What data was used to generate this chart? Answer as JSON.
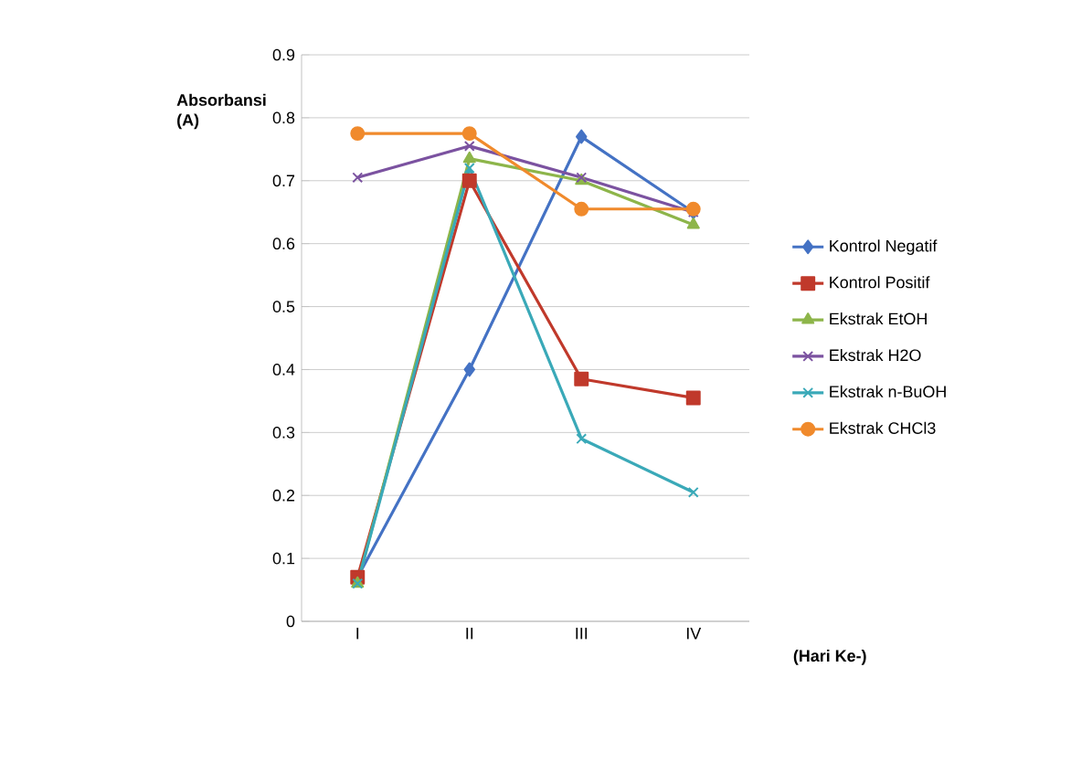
{
  "chart_data": {
    "type": "line",
    "ylabel": "Absorbansi (A)",
    "xlabel": "(Hari Ke-)",
    "categories": [
      "I",
      "II",
      "III",
      "IV"
    ],
    "series": [
      {
        "name": "Kontrol Negatif",
        "color": "#4472c4",
        "marker": "diamond",
        "values": [
          0.07,
          0.4,
          0.77,
          0.65
        ]
      },
      {
        "name": "Kontrol Positif",
        "color": "#c0392b",
        "marker": "square",
        "values": [
          0.07,
          0.7,
          0.385,
          0.355
        ]
      },
      {
        "name": "Ekstrak EtOH",
        "color": "#8db54a",
        "marker": "triangle",
        "values": [
          0.06,
          0.735,
          0.7,
          0.63
        ]
      },
      {
        "name": "Ekstrak H2O",
        "color": "#7b52a0",
        "marker": "cross",
        "values": [
          0.705,
          0.755,
          0.705,
          0.65
        ]
      },
      {
        "name": "Ekstrak n-BuOH",
        "color": "#3aa9b8",
        "marker": "cross",
        "values": [
          0.06,
          0.72,
          0.29,
          0.205
        ]
      },
      {
        "name": "Ekstrak CHCl3",
        "color": "#f08a2c",
        "marker": "circle",
        "values": [
          0.775,
          0.775,
          0.655,
          0.655
        ]
      }
    ],
    "ylim": [
      0,
      0.9
    ],
    "yticks": [
      0,
      0.1,
      0.2,
      0.3,
      0.4,
      0.5,
      0.6,
      0.7,
      0.8,
      0.9
    ],
    "grid": "y",
    "legend": "right"
  }
}
